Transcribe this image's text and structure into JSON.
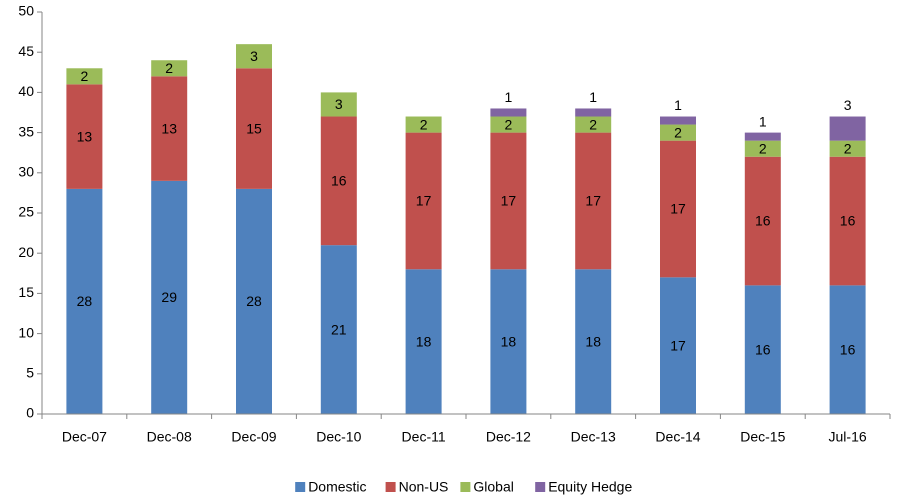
{
  "chart_data": {
    "type": "stacked_bar",
    "categories": [
      "Dec-07",
      "Dec-08",
      "Dec-09",
      "Dec-10",
      "Dec-11",
      "Dec-12",
      "Dec-13",
      "Dec-14",
      "Dec-15",
      "Jul-16"
    ],
    "series": [
      {
        "name": "Domestic",
        "color": "#4f81bd",
        "values": [
          28,
          29,
          28,
          21,
          18,
          18,
          18,
          17,
          16,
          16
        ]
      },
      {
        "name": "Non-US",
        "color": "#c0504d",
        "values": [
          13,
          13,
          15,
          16,
          17,
          17,
          17,
          17,
          16,
          16
        ]
      },
      {
        "name": "Global",
        "color": "#9bbb59",
        "values": [
          2,
          2,
          3,
          3,
          2,
          2,
          2,
          2,
          2,
          2
        ]
      },
      {
        "name": "Equity Hedge",
        "color": "#8064a2",
        "values": [
          null,
          null,
          null,
          null,
          null,
          1,
          1,
          1,
          1,
          3
        ]
      }
    ],
    "ylim": [
      0,
      50
    ],
    "yticks": [
      0,
      5,
      10,
      15,
      20,
      25,
      30,
      35,
      40,
      45,
      50
    ],
    "legend": "bottom"
  }
}
